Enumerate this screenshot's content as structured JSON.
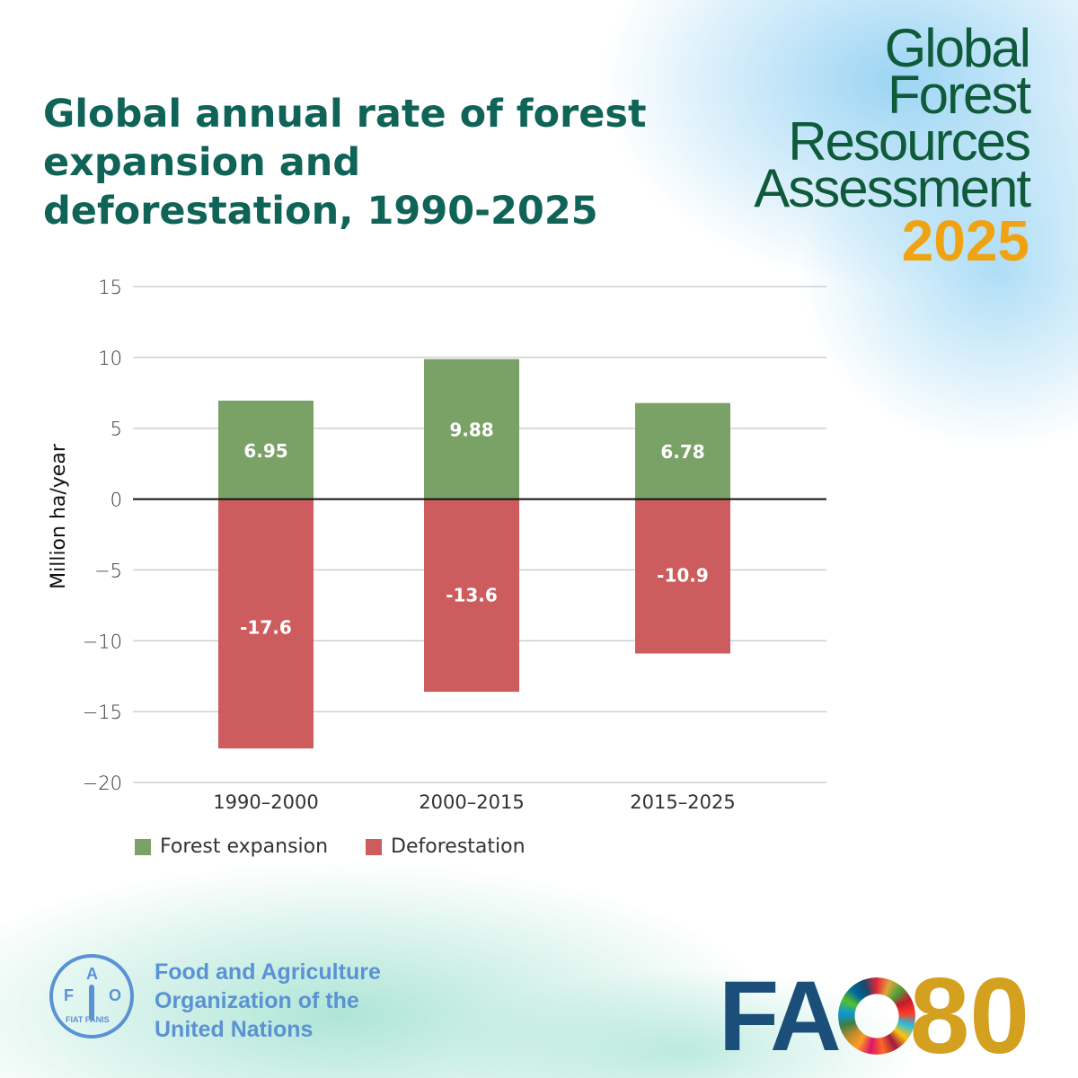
{
  "title": "Global annual rate of forest expansion and deforestation, 1990-2025",
  "branding": {
    "report_lines": [
      "Global",
      "Forest",
      "Resources",
      "Assessment"
    ],
    "report_year": "2025",
    "org_lines": [
      "Food and Agriculture",
      "Organization of the",
      "United Nations"
    ],
    "emblem_letters": [
      "F",
      "A",
      "O"
    ],
    "emblem_motto": "FIAT PANIS",
    "fao80_letters": "FA",
    "fao80_number": "80"
  },
  "colors": {
    "expansion": "#7aa267",
    "deforestation": "#cd5c5e",
    "title": "#0f6357",
    "year": "#f0a312"
  },
  "chart_data": {
    "type": "bar",
    "stacked": true,
    "title": "Global annual rate of forest expansion and deforestation, 1990-2025",
    "xlabel": "",
    "ylabel": "Million ha/year",
    "ylim": [
      -20,
      15
    ],
    "yticks": [
      "15",
      "10",
      "5",
      "0",
      "−5",
      "−10",
      "−15",
      "−20"
    ],
    "ytick_values": [
      15,
      10,
      5,
      0,
      -5,
      -10,
      -15,
      -20
    ],
    "grid": true,
    "legend_position": "bottom-left",
    "categories": [
      "1990–2000",
      "2000–2015",
      "2015–2025"
    ],
    "series": [
      {
        "name": "Forest expansion",
        "values": [
          6.95,
          9.88,
          6.78
        ],
        "labels": [
          "6.95",
          "9.88",
          "6.78"
        ],
        "color": "#7aa267"
      },
      {
        "name": "Deforestation",
        "values": [
          -17.6,
          -13.6,
          -10.9
        ],
        "labels": [
          "-17.6",
          "-13.6",
          "-10.9"
        ],
        "color": "#cd5c5e"
      }
    ]
  }
}
